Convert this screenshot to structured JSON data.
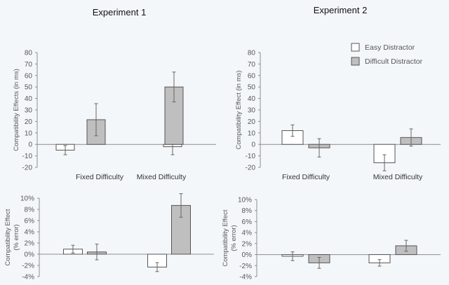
{
  "figure": {
    "experiment_titles": [
      "Experiment 1",
      "Experiment 2"
    ],
    "legend": {
      "items": [
        {
          "label": "Easy Distractor",
          "color": "#ffffff"
        },
        {
          "label": "Difficult Distractor",
          "color": "#bfbfbf"
        }
      ]
    },
    "colors": {
      "easy": "#ffffff",
      "difficult": "#bfbfbf",
      "outline": "#555555",
      "axis": "#8c8c8c",
      "text": "#555555",
      "background": "#f4f7fa"
    }
  },
  "chart_data": [
    {
      "id": "exp1-rt",
      "type": "bar",
      "title": "Experiment 1",
      "ylabel": "Compatibility Effects (in ms)",
      "ylim": [
        -20,
        80
      ],
      "yticks": [
        -20,
        -10,
        0,
        10,
        20,
        30,
        40,
        50,
        60,
        70,
        80
      ],
      "ytick_labels": [
        "-20",
        "-10",
        "0",
        "10",
        "20",
        "30",
        "40",
        "50",
        "60",
        "70",
        "80"
      ],
      "categories": [
        "Fixed Difficulty",
        "Mixed Difficulty"
      ],
      "series": [
        {
          "name": "Easy Distractor",
          "values": [
            -5,
            -2
          ],
          "errors": [
            4,
            7
          ]
        },
        {
          "name": "Difficult Distractor",
          "values": [
            21.5,
            50
          ],
          "errors": [
            14,
            13
          ]
        }
      ]
    },
    {
      "id": "exp2-rt",
      "type": "bar",
      "title": "Experiment 2",
      "ylabel": "Compatibility Effect (in ms)",
      "ylim": [
        -20,
        80
      ],
      "yticks": [
        -20,
        -10,
        0,
        10,
        20,
        30,
        40,
        50,
        60,
        70,
        80
      ],
      "ytick_labels": [
        "-20",
        "-10",
        "0",
        "10",
        "20",
        "30",
        "40",
        "50",
        "60",
        "70",
        "80"
      ],
      "categories": [
        "Fixed Difficulty",
        "Mixed Difficulty"
      ],
      "series": [
        {
          "name": "Easy Distractor",
          "values": [
            12,
            -16
          ],
          "errors": [
            5,
            7
          ]
        },
        {
          "name": "Difficult Distractor",
          "values": [
            -3,
            6
          ],
          "errors": [
            8,
            7.5
          ]
        }
      ]
    },
    {
      "id": "exp1-err",
      "type": "bar",
      "title": "",
      "ylabel": "Compatibility Effect\n(% error)",
      "ylim": [
        -4,
        10
      ],
      "yticks": [
        -4,
        -2,
        0,
        2,
        4,
        6,
        8,
        10
      ],
      "ytick_labels": [
        "-4%",
        "-2%",
        "0%",
        "2%",
        "4%",
        "6%",
        "8%",
        "10%"
      ],
      "categories": [
        "Fixed Difficulty",
        "Mixed Difficulty"
      ],
      "series": [
        {
          "name": "Easy Distractor",
          "values": [
            0.9,
            -2.3
          ],
          "errors": [
            0.7,
            0.8
          ]
        },
        {
          "name": "Difficult Distractor",
          "values": [
            0.4,
            8.7
          ],
          "errors": [
            1.4,
            2.1
          ]
        }
      ]
    },
    {
      "id": "exp2-err",
      "type": "bar",
      "title": "",
      "ylabel": "Compatibility Effect\n(% error)",
      "ylim": [
        -4,
        10
      ],
      "yticks": [
        -4,
        -2,
        0,
        2,
        4,
        6,
        8,
        10
      ],
      "ytick_labels": [
        "-4%",
        "-2%",
        "0%",
        "2%",
        "4%",
        "6%",
        "8%",
        "10%"
      ],
      "categories": [
        "Fixed Difficulty",
        "Mixed Difficulty"
      ],
      "series": [
        {
          "name": "Easy Distractor",
          "values": [
            -0.3,
            -1.5
          ],
          "errors": [
            0.8,
            0.6
          ]
        },
        {
          "name": "Difficult Distractor",
          "values": [
            -1.5,
            1.6
          ],
          "errors": [
            1.0,
            1.0
          ]
        }
      ]
    }
  ]
}
